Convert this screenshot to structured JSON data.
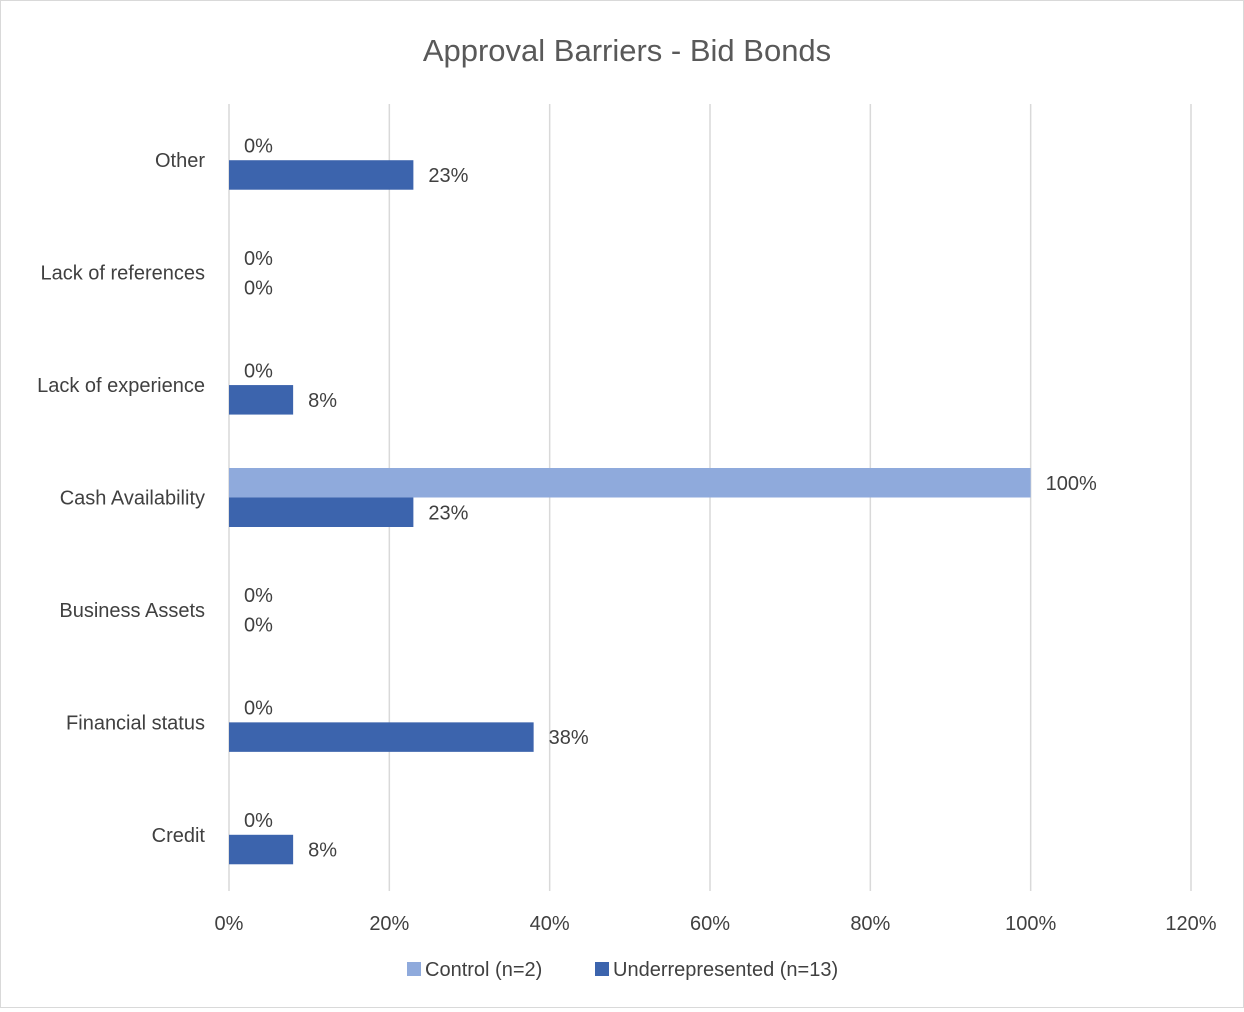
{
  "chart_data": {
    "type": "bar",
    "orientation": "horizontal",
    "title": "Approval Barriers - Bid Bonds",
    "categories": [
      "Credit",
      "Financial status",
      "Business Assets",
      "Cash Availability",
      "Lack of experience",
      "Lack of references",
      "Other"
    ],
    "series": [
      {
        "name": "Control (n=2)",
        "color": "#8faadc",
        "values": [
          0,
          0,
          0,
          100,
          0,
          0,
          0
        ],
        "labels": [
          "0%",
          "0%",
          "0%",
          "100%",
          "0%",
          "0%",
          "0%"
        ]
      },
      {
        "name": "Underrepresented (n=13)",
        "color": "#3c64ad",
        "values": [
          8,
          38,
          0,
          23,
          8,
          0,
          23
        ],
        "labels": [
          "8%",
          "38%",
          "0%",
          "23%",
          "8%",
          "0%",
          "23%"
        ]
      }
    ],
    "xlim": [
      0,
      120
    ],
    "x_ticks": [
      0,
      20,
      40,
      60,
      80,
      100,
      120
    ],
    "x_tick_labels": [
      "0%",
      "20%",
      "40%",
      "60%",
      "80%",
      "100%",
      "120%"
    ],
    "grid": true,
    "legend_position": "bottom",
    "gridline_color": "#d9d9d9"
  }
}
